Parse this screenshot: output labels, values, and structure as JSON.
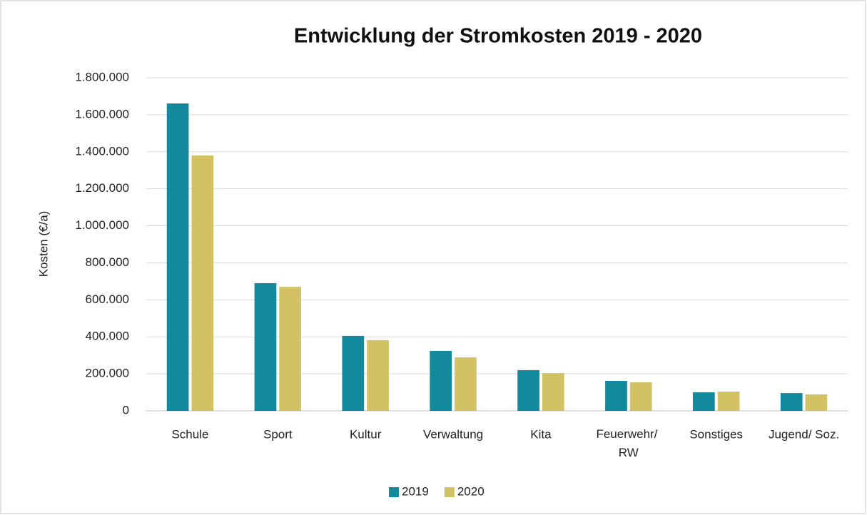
{
  "chart_data": {
    "type": "bar",
    "title": "Entwicklung der Stromkosten 2019 - 2020",
    "y_label": "Kosten (€/a)",
    "categories": [
      "Schule",
      "Sport",
      "Kultur",
      "Verwaltung",
      "Kita",
      "Feuerwehr/ RW",
      "Sonstiges",
      "Jugend/ Soz."
    ],
    "series": [
      {
        "name": "2019",
        "color": "#12899c",
        "values": [
          1661000,
          690000,
          405000,
          324000,
          220000,
          162000,
          100000,
          96000
        ]
      },
      {
        "name": "2020",
        "color": "#d3c263",
        "values": [
          1380000,
          670000,
          382000,
          289000,
          204000,
          154000,
          104000,
          89000
        ]
      }
    ],
    "ylim": [
      0,
      1800000
    ],
    "yticks": [
      0,
      {
        "value": 200000,
        "label": "200.000"
      },
      {
        "value": 400000,
        "label": "400.000"
      },
      {
        "value": 600000,
        "label": "600.000"
      },
      {
        "value": 800000,
        "label": "800.000"
      },
      {
        "value": 1000000,
        "label": "1.000.000"
      },
      {
        "value": 1200000,
        "label": "1.200.000"
      },
      {
        "value": 1400000,
        "label": "1.400.000"
      },
      {
        "value": 1600000,
        "label": "1.600.000"
      },
      {
        "value": 1800000,
        "label": "1.800.000"
      }
    ],
    "grid": true,
    "legend": "bottom"
  }
}
